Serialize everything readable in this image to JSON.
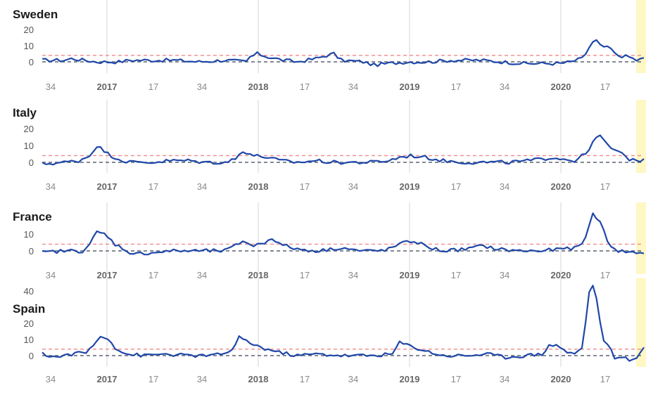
{
  "chart_data": {
    "type": "line",
    "x_tick_labels": [
      "34",
      "2017",
      "17",
      "34",
      "2018",
      "17",
      "34",
      "2019",
      "17",
      "34",
      "2020",
      "17"
    ],
    "colors": {
      "line": "#1f47a8",
      "threshold": "#f08a8a",
      "baseline": "#5a6470",
      "highlight": "#fff7c4",
      "grid": "#d6d6d6"
    },
    "panels": [
      {
        "name": "Sweden",
        "yticks": [
          0,
          10,
          20
        ],
        "ylim": [
          -4,
          24
        ],
        "threshold": 4,
        "baseline": 0,
        "keypoints": [
          [
            0,
            1
          ],
          [
            12,
            1
          ],
          [
            16,
            2
          ],
          [
            30,
            0
          ],
          [
            42,
            0
          ],
          [
            48,
            1
          ],
          [
            60,
            1
          ],
          [
            72,
            1
          ],
          [
            86,
            0
          ],
          [
            100,
            1
          ],
          [
            112,
            0
          ],
          [
            114,
            3
          ],
          [
            118,
            5
          ],
          [
            124,
            3
          ],
          [
            132,
            1
          ],
          [
            140,
            0
          ],
          [
            150,
            2
          ],
          [
            156,
            4
          ],
          [
            160,
            5
          ],
          [
            164,
            1
          ],
          [
            176,
            0
          ],
          [
            182,
            -2
          ],
          [
            190,
            -1
          ],
          [
            200,
            0
          ],
          [
            212,
            0
          ],
          [
            224,
            1
          ],
          [
            240,
            1
          ],
          [
            252,
            0
          ],
          [
            264,
            -1
          ],
          [
            276,
            -1
          ],
          [
            284,
            -1
          ],
          [
            290,
            0
          ],
          [
            296,
            2
          ],
          [
            298,
            5
          ],
          [
            300,
            9
          ],
          [
            302,
            12
          ],
          [
            304,
            13
          ],
          [
            306,
            10
          ],
          [
            312,
            8
          ],
          [
            314,
            5
          ],
          [
            316,
            4
          ],
          [
            322,
            3
          ],
          [
            326,
            1
          ],
          [
            330,
            2
          ]
        ]
      },
      {
        "name": "Italy",
        "yticks": [
          0,
          10,
          20
        ],
        "ylim": [
          -4,
          24
        ],
        "threshold": 4,
        "baseline": 0,
        "keypoints": [
          [
            0,
            -1
          ],
          [
            12,
            0
          ],
          [
            20,
            1
          ],
          [
            26,
            4
          ],
          [
            30,
            10
          ],
          [
            36,
            5
          ],
          [
            44,
            1
          ],
          [
            50,
            0
          ],
          [
            60,
            0
          ],
          [
            70,
            1
          ],
          [
            80,
            1
          ],
          [
            90,
            0
          ],
          [
            100,
            0
          ],
          [
            106,
            2
          ],
          [
            110,
            7
          ],
          [
            116,
            4
          ],
          [
            124,
            3
          ],
          [
            130,
            1
          ],
          [
            140,
            0
          ],
          [
            150,
            1
          ],
          [
            160,
            0
          ],
          [
            170,
            0
          ],
          [
            180,
            0
          ],
          [
            190,
            1
          ],
          [
            196,
            3
          ],
          [
            202,
            4
          ],
          [
            210,
            3
          ],
          [
            220,
            1
          ],
          [
            232,
            0
          ],
          [
            244,
            0
          ],
          [
            256,
            0
          ],
          [
            268,
            1
          ],
          [
            280,
            3
          ],
          [
            292,
            1
          ],
          [
            298,
            5
          ],
          [
            302,
            12
          ],
          [
            306,
            16
          ],
          [
            310,
            10
          ],
          [
            316,
            6
          ],
          [
            322,
            2
          ],
          [
            330,
            1
          ]
        ]
      },
      {
        "name": "France",
        "yticks": [
          0,
          10
        ],
        "ylim": [
          -4,
          22
        ],
        "threshold": 4,
        "baseline": 0,
        "keypoints": [
          [
            0,
            -1
          ],
          [
            12,
            0
          ],
          [
            22,
            0
          ],
          [
            26,
            4
          ],
          [
            30,
            11
          ],
          [
            34,
            10
          ],
          [
            40,
            4
          ],
          [
            50,
            -2
          ],
          [
            60,
            -1
          ],
          [
            72,
            0
          ],
          [
            84,
            0
          ],
          [
            100,
            0
          ],
          [
            106,
            3
          ],
          [
            110,
            6
          ],
          [
            116,
            3
          ],
          [
            122,
            5
          ],
          [
            126,
            8
          ],
          [
            130,
            4
          ],
          [
            140,
            1
          ],
          [
            152,
            0
          ],
          [
            164,
            2
          ],
          [
            174,
            0
          ],
          [
            184,
            0
          ],
          [
            190,
            1
          ],
          [
            196,
            4
          ],
          [
            204,
            6
          ],
          [
            212,
            2
          ],
          [
            220,
            0
          ],
          [
            232,
            1
          ],
          [
            242,
            3
          ],
          [
            250,
            1
          ],
          [
            262,
            0
          ],
          [
            274,
            0
          ],
          [
            284,
            1
          ],
          [
            294,
            2
          ],
          [
            298,
            8
          ],
          [
            302,
            22
          ],
          [
            306,
            18
          ],
          [
            310,
            5
          ],
          [
            316,
            0
          ],
          [
            324,
            -1
          ],
          [
            330,
            -1
          ]
        ]
      },
      {
        "name": "Spain",
        "yticks": [
          0,
          10,
          20,
          40
        ],
        "ylim": [
          -4,
          44
        ],
        "threshold": 4,
        "baseline": 0,
        "keypoints": [
          [
            0,
            1
          ],
          [
            8,
            -1
          ],
          [
            16,
            1
          ],
          [
            24,
            2
          ],
          [
            28,
            6
          ],
          [
            32,
            12
          ],
          [
            36,
            11
          ],
          [
            40,
            5
          ],
          [
            46,
            1
          ],
          [
            56,
            0
          ],
          [
            66,
            1
          ],
          [
            80,
            0
          ],
          [
            94,
            0
          ],
          [
            104,
            3
          ],
          [
            108,
            11
          ],
          [
            114,
            8
          ],
          [
            120,
            5
          ],
          [
            130,
            2
          ],
          [
            140,
            0
          ],
          [
            150,
            1
          ],
          [
            166,
            0
          ],
          [
            180,
            0
          ],
          [
            192,
            1
          ],
          [
            196,
            8
          ],
          [
            202,
            6
          ],
          [
            210,
            3
          ],
          [
            220,
            0
          ],
          [
            232,
            0
          ],
          [
            244,
            1
          ],
          [
            254,
            -1
          ],
          [
            264,
            0
          ],
          [
            274,
            1
          ],
          [
            278,
            6
          ],
          [
            282,
            7
          ],
          [
            288,
            2
          ],
          [
            292,
            1
          ],
          [
            296,
            5
          ],
          [
            298,
            20
          ],
          [
            300,
            40
          ],
          [
            302,
            43
          ],
          [
            304,
            36
          ],
          [
            306,
            20
          ],
          [
            308,
            10
          ],
          [
            312,
            3
          ],
          [
            314,
            -1
          ],
          [
            320,
            -2
          ],
          [
            324,
            -3
          ],
          [
            328,
            1
          ],
          [
            330,
            5
          ]
        ]
      }
    ]
  }
}
